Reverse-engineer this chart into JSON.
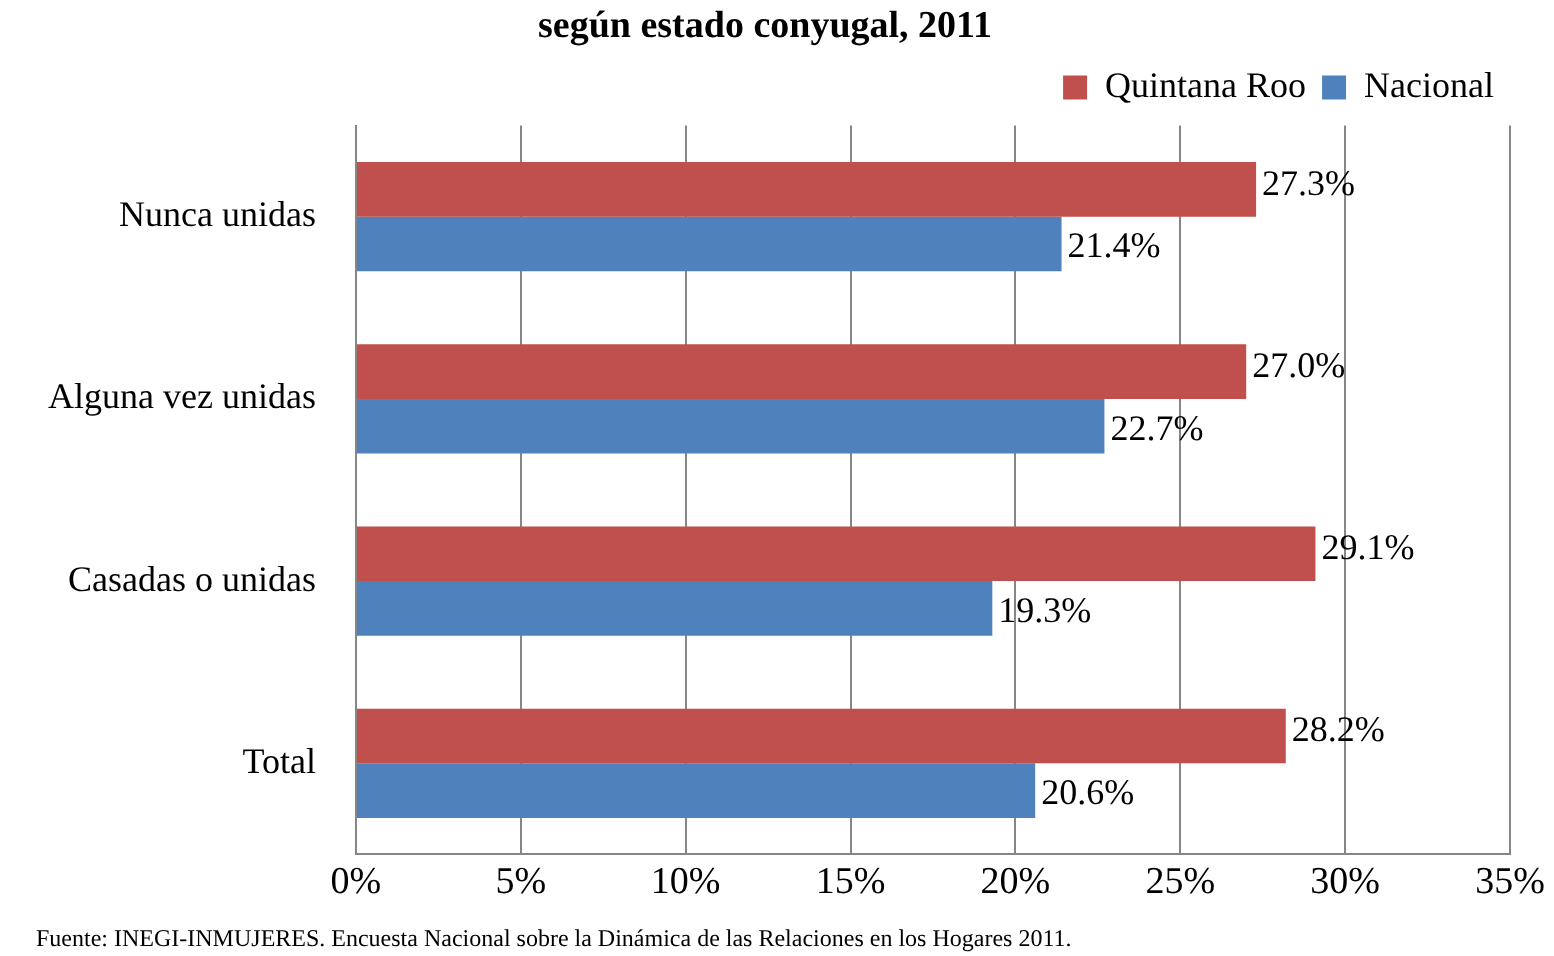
{
  "chart_data": {
    "type": "bar",
    "orientation": "horizontal",
    "title": "según estado conyugal, 2011",
    "categories": [
      "Nunca unidas",
      "Alguna vez unidas",
      "Casadas o unidas",
      "Total"
    ],
    "series": [
      {
        "name": "Quintana Roo",
        "color": "#c0504d",
        "values": [
          27.3,
          27.0,
          29.1,
          28.2
        ],
        "value_labels": [
          "27.3%",
          "27.0%",
          "29.1%",
          "28.2%"
        ]
      },
      {
        "name": "Nacional",
        "color": "#4f81bd",
        "values": [
          21.4,
          22.7,
          19.3,
          20.6
        ],
        "value_labels": [
          "21.4%",
          "22.7%",
          "19.3%",
          "20.6%"
        ]
      }
    ],
    "xlim": [
      0,
      35
    ],
    "xticks": [
      {
        "value": 0,
        "label": "0%"
      },
      {
        "value": 5,
        "label": "5%"
      },
      {
        "value": 10,
        "label": "10%"
      },
      {
        "value": 15,
        "label": "15%"
      },
      {
        "value": 20,
        "label": "20%"
      },
      {
        "value": 25,
        "label": "25%"
      },
      {
        "value": 30,
        "label": "30%"
      },
      {
        "value": 35,
        "label": "35%"
      }
    ],
    "grid": "x",
    "legend": "top right",
    "annotations": [
      "Fuente: INEGI-INMUJERES. Encuesta Nacional sobre la Dinámica de las Relaciones en los Hogares 2011."
    ]
  }
}
